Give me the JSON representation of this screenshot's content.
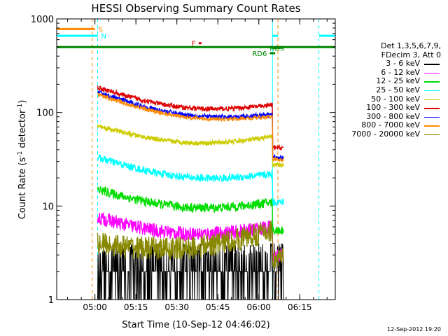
{
  "chart_data": {
    "type": "line",
    "title": "HESSI Observing Summary Count Rates",
    "xlabel": "Start Time (10-Sep-12 04:46:02)",
    "ylabel_main": "Count Rate (s",
    "ylabel_sup1": "-1",
    "ylabel_mid": " detector",
    "ylabel_sup2": "-1",
    "ylabel_end": ")",
    "y_scale": "log",
    "ylim": [
      1,
      1000
    ],
    "xlim": [
      "04:46",
      "06:28"
    ],
    "x_ticks": [
      "05:00",
      "05:15",
      "05:30",
      "05:45",
      "06:00",
      "06:15"
    ],
    "y_ticks": [
      "1",
      "10",
      "100",
      "1000"
    ],
    "legend_header": [
      "Det 1,3,5,6,7,9,",
      "FDecim 3, Att 0"
    ],
    "legend_placement": "right",
    "series": [
      {
        "name": "3 - 6 keV",
        "color": "#000000",
        "level_start": 2.6,
        "level_end": 2.0,
        "noise": 0.35
      },
      {
        "name": "6 - 12 keV",
        "color": "#ff00ff",
        "level_start": 7.5,
        "level_end": 6.0,
        "noise": 0.15
      },
      {
        "name": "12 - 25 keV",
        "color": "#00dd00",
        "level_start": 15.0,
        "level_end": 11.0,
        "noise": 0.1
      },
      {
        "name": "25 - 50 keV",
        "color": "#00ffff",
        "level_start": 33.0,
        "level_end": 22.0,
        "noise": 0.08
      },
      {
        "name": "50 - 100 keV",
        "color": "#cccc00",
        "level_start": 72.0,
        "level_end": 55.0,
        "noise": 0.05
      },
      {
        "name": "100 - 300 keV",
        "color": "#dd0000",
        "level_start": 185.0,
        "level_end": 120.0,
        "noise": 0.05
      },
      {
        "name": "300 - 800 keV",
        "color": "#0000ff",
        "level_start": 165.0,
        "level_end": 95.0,
        "noise": 0.05
      },
      {
        "name": "800 - 7000 keV",
        "color": "#ff8800",
        "level_start": 155.0,
        "level_end": 90.0,
        "noise": 0.04
      },
      {
        "name": "7000 - 20000 keV",
        "color": "#888800",
        "level_start": 4.0,
        "level_end": 5.5,
        "noise": 0.25
      }
    ],
    "flags": [
      {
        "label": "S",
        "color": "#ff8800",
        "start": "04:46",
        "end": "05:00",
        "y": 780
      },
      {
        "label": "N",
        "color": "#00ffff",
        "start": "04:46",
        "end": "05:01",
        "y": 660
      },
      {
        "label": "F",
        "color": "#dd0000",
        "start": "05:38",
        "end": "05:39",
        "y": 550
      },
      {
        "label": "",
        "color": "#008800",
        "start": "04:46",
        "end": "06:28",
        "y": 500
      },
      {
        "label": "RD9",
        "color": "#008800",
        "start": "06:05",
        "end": "06:08",
        "y": 490
      },
      {
        "label": "RD6",
        "color": "#008800",
        "start": "06:04",
        "end": "06:06",
        "y": 430
      },
      {
        "label": "",
        "color": "#00ffff",
        "start": "06:22",
        "end": "06:28",
        "y": 660
      },
      {
        "label": "",
        "color": "#00ffff",
        "start": "06:05",
        "end": "06:07",
        "y": 660
      }
    ],
    "vertical_markers": [
      {
        "time": "04:46",
        "color": "#00ffff",
        "style": "solid"
      },
      {
        "time": "04:59",
        "color": "#ff8800",
        "style": "dashed"
      },
      {
        "time": "05:01",
        "color": "#00ffff",
        "style": "dashed"
      },
      {
        "time": "06:05",
        "color": "#00ffff",
        "style": "solid"
      },
      {
        "time": "06:07",
        "color": "#ff8800",
        "style": "dashed"
      },
      {
        "time": "06:22",
        "color": "#00ffff",
        "style": "dashed"
      }
    ],
    "data_start": "05:01",
    "data_end": "06:09",
    "attenuator_drop_time": "06:05"
  },
  "timestamp": "12-Sep-2012 19:20"
}
